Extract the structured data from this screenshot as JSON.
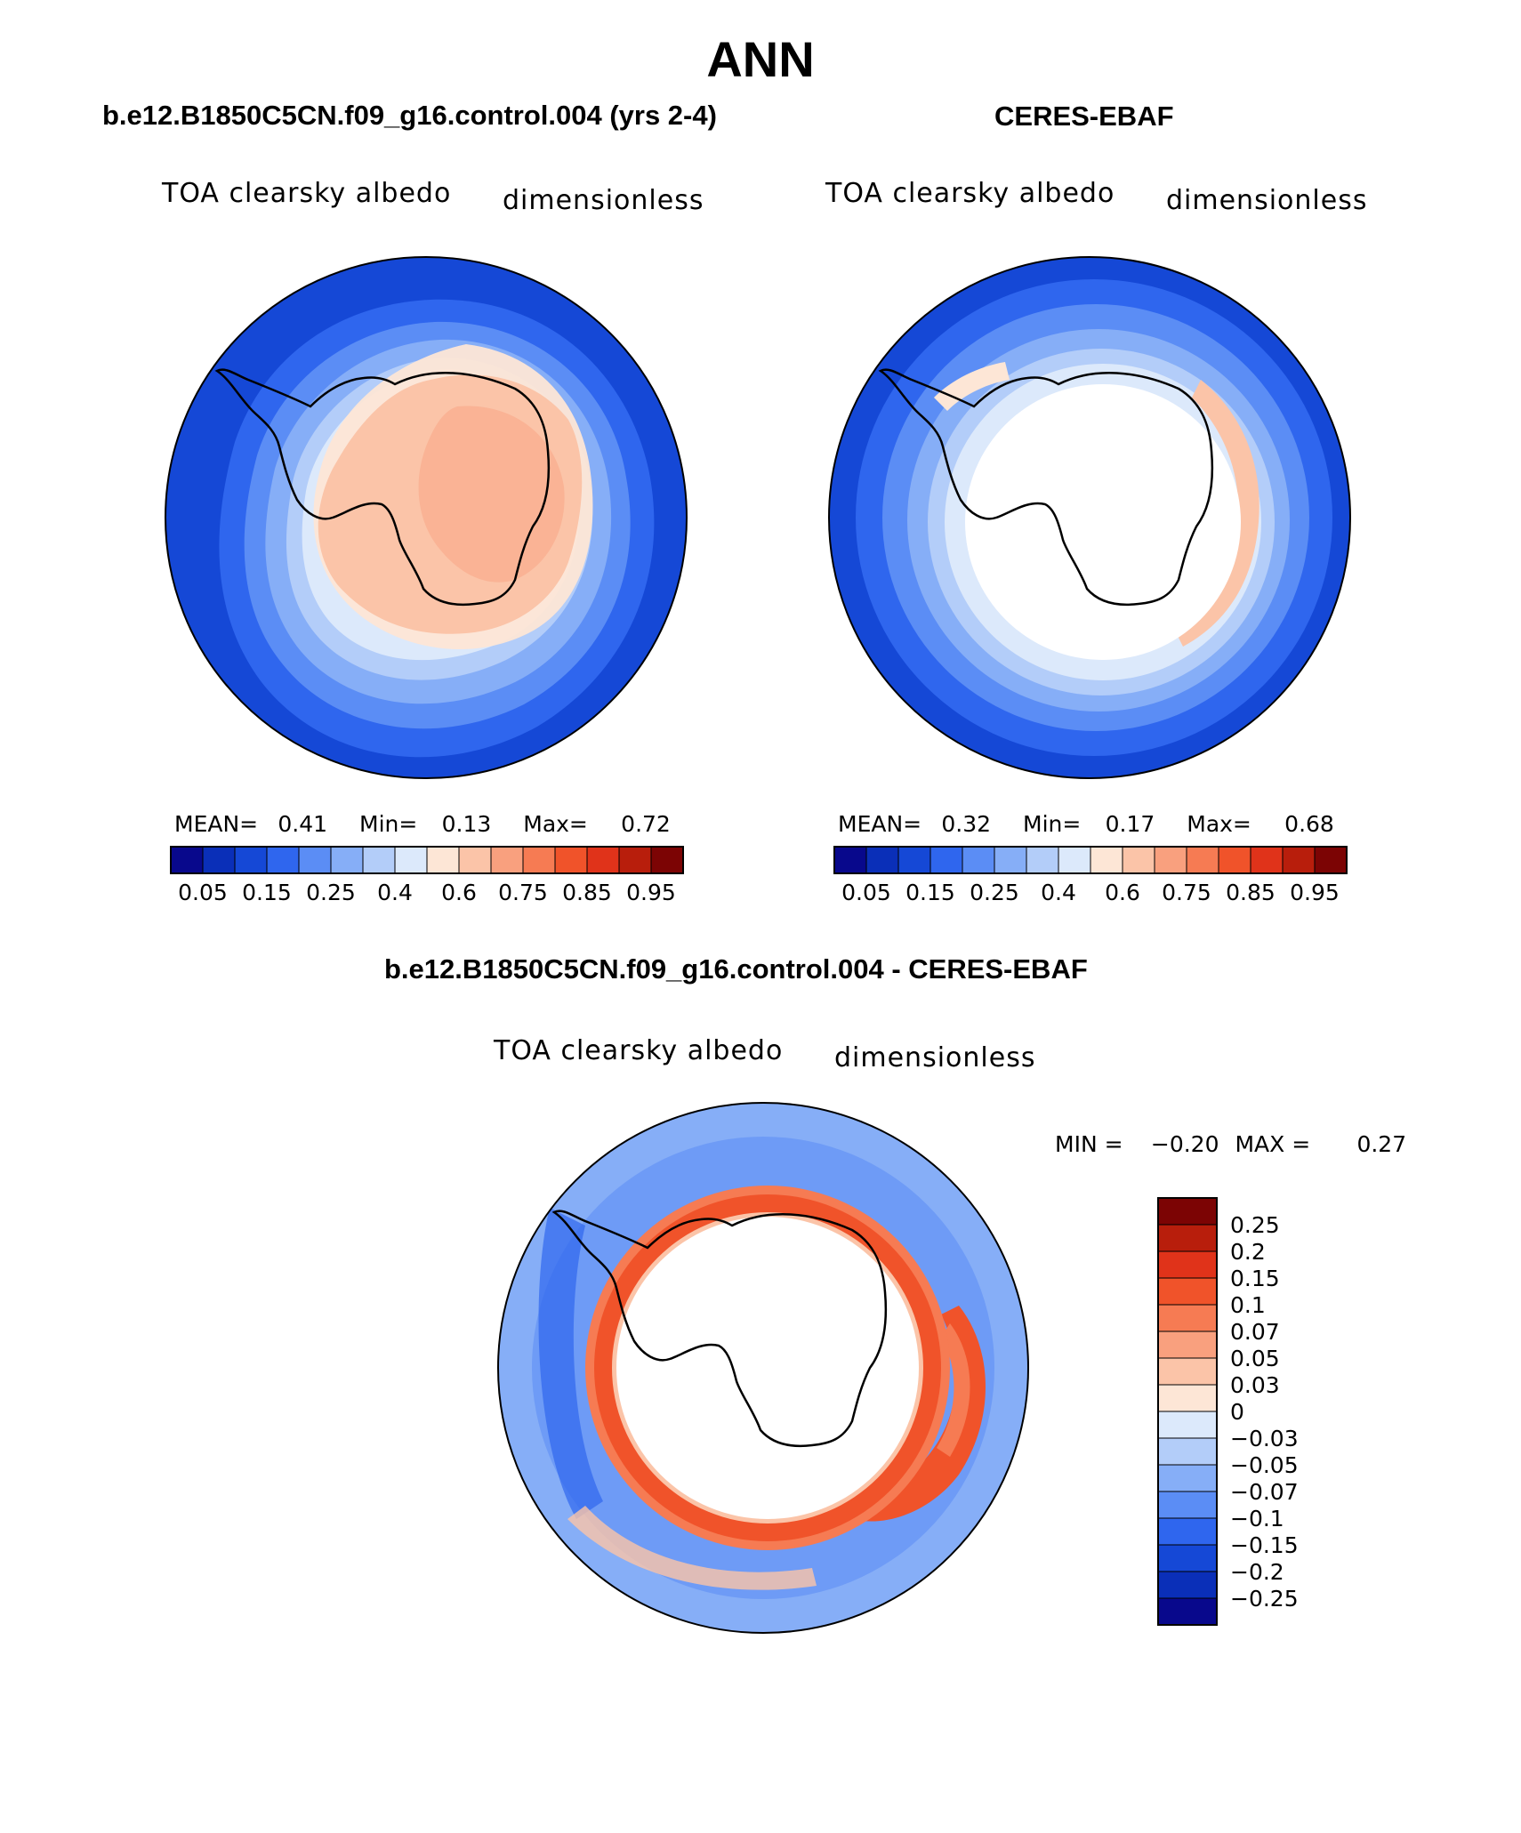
{
  "figure": {
    "season_title": "ANN"
  },
  "panels": [
    {
      "title": "b.e12.B1850C5CN.f09_g16.control.004 (yrs 2-4)",
      "variable_label": "TOA clearsky albedo",
      "units_label": "dimensionless",
      "stats": {
        "mean_label": "MEAN=",
        "mean": "0.41",
        "min_label": "Min=",
        "min": "0.13",
        "max_label": "Max=",
        "max": "0.72"
      }
    },
    {
      "title": "CERES-EBAF",
      "variable_label": "TOA clearsky albedo",
      "units_label": "dimensionless",
      "stats": {
        "mean_label": "MEAN=",
        "mean": "0.32",
        "min_label": "Min=",
        "min": "0.17",
        "max_label": "Max=",
        "max": "0.68"
      }
    },
    {
      "title": "b.e12.B1850C5CN.f09_g16.control.004 - CERES-EBAF",
      "variable_label": "TOA clearsky albedo",
      "units_label": "dimensionless",
      "stats": {
        "min_label": "MIN =",
        "min": "−0.20",
        "max_label": "MAX =",
        "max": "0.27"
      }
    }
  ],
  "colorbars": {
    "absolute": {
      "colors": [
        "#08088c",
        "#0a2fb8",
        "#1548d6",
        "#2f66ee",
        "#5b8df5",
        "#86aef7",
        "#b3cdf9",
        "#dce9fb",
        "#fde6d6",
        "#fbc4a8",
        "#f9a07e",
        "#f67b53",
        "#f0532a",
        "#e0331a",
        "#b81e0c",
        "#7c0404"
      ],
      "tick_labels": [
        "0.05",
        "0.15",
        "0.25",
        "0.4",
        "0.6",
        "0.75",
        "0.85",
        "0.95"
      ]
    },
    "difference": {
      "colors": [
        "#7c0404",
        "#b81e0c",
        "#e0331a",
        "#f0532a",
        "#f67b53",
        "#f9a07e",
        "#fbc4a8",
        "#fde6d6",
        "#dce9fb",
        "#b3cdf9",
        "#86aef7",
        "#5b8df5",
        "#2f66ee",
        "#1548d6",
        "#0a2fb8",
        "#08088c"
      ],
      "tick_labels": [
        "0.25",
        "0.2",
        "0.15",
        "0.1",
        "0.07",
        "0.05",
        "0.03",
        "0",
        "−0.03",
        "−0.05",
        "−0.07",
        "−0.1",
        "−0.15",
        "−0.2",
        "−0.25"
      ]
    }
  }
}
